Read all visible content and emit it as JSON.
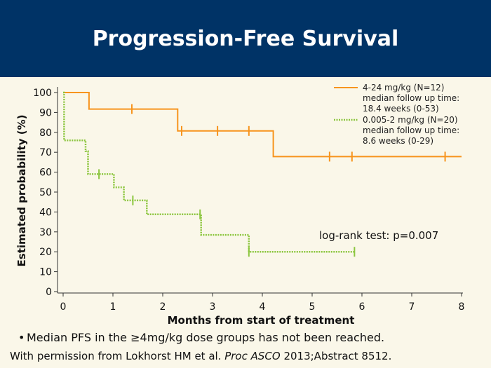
{
  "slide": {
    "title": "Progression-Free Survival",
    "bullet_marker": "•",
    "bullet": "Median PFS in the ≥4mg/kg dose groups has not been reached.",
    "credit_prefix": "With permission from Lokhorst HM et al. ",
    "credit_journal": "Proc ASCO",
    "credit_suffix": " 2013;Abstract 8512."
  },
  "chart_data": {
    "type": "line",
    "step": true,
    "xlabel": "Months from start of treatment",
    "ylabel": "Estimated probability (%)",
    "xlim": [
      0,
      8
    ],
    "ylim": [
      0,
      100
    ],
    "xticks": [
      0,
      1,
      2,
      3,
      4,
      5,
      6,
      7,
      8
    ],
    "yticks": [
      0,
      10,
      20,
      30,
      40,
      50,
      60,
      70,
      80,
      90,
      100
    ],
    "grid": false,
    "legend_position": "top-right",
    "annotation": "log-rank test: p=0.007",
    "series": [
      {
        "name": "4-24 mg/kg (N=12)",
        "legend_lines": [
          "4-24 mg/kg (N=12)",
          "median follow up time:",
          "18.4 weeks (0-53)"
        ],
        "color": "#f7941d",
        "style": "solid",
        "points": [
          [
            0,
            100
          ],
          [
            0.52,
            100
          ],
          [
            0.52,
            91.7
          ],
          [
            2.3,
            91.7
          ],
          [
            2.3,
            80.7
          ],
          [
            4.22,
            80.7
          ],
          [
            4.22,
            67.8
          ],
          [
            8.0,
            67.8
          ]
        ],
        "censor": [
          [
            1.38,
            91.7
          ],
          [
            2.38,
            80.7
          ],
          [
            3.1,
            80.7
          ],
          [
            3.73,
            80.7
          ],
          [
            5.35,
            67.8
          ],
          [
            5.8,
            67.8
          ],
          [
            7.67,
            67.8
          ]
        ]
      },
      {
        "name": "0.005-2 mg/kg (N=20)",
        "legend_lines": [
          "0.005-2 mg/kg (N=20)",
          "median follow up time:",
          "8.6 weeks (0-29)"
        ],
        "color": "#8cc63f",
        "style": "dotted",
        "points": [
          [
            0,
            100
          ],
          [
            0.02,
            100
          ],
          [
            0.02,
            76
          ],
          [
            0.45,
            76
          ],
          [
            0.45,
            70.5
          ],
          [
            0.5,
            70.5
          ],
          [
            0.5,
            59
          ],
          [
            1.02,
            59
          ],
          [
            1.02,
            52.4
          ],
          [
            1.22,
            52.4
          ],
          [
            1.22,
            45.8
          ],
          [
            1.68,
            45.8
          ],
          [
            1.68,
            38.8
          ],
          [
            2.77,
            38.8
          ],
          [
            2.77,
            28.5
          ],
          [
            3.73,
            28.5
          ],
          [
            3.73,
            20
          ],
          [
            5.85,
            20
          ]
        ],
        "censor": [
          [
            0.72,
            59
          ],
          [
            1.4,
            45.8
          ],
          [
            2.75,
            38.8
          ],
          [
            3.73,
            20
          ],
          [
            5.85,
            20
          ]
        ]
      }
    ]
  }
}
